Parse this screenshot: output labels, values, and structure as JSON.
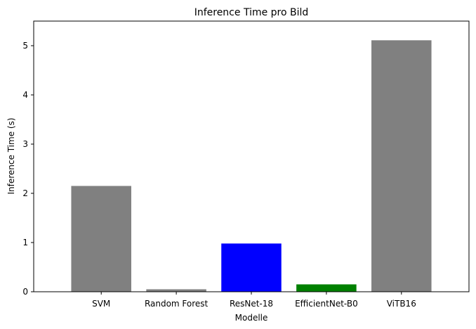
{
  "chart_data": {
    "type": "bar",
    "title": "Inference Time pro Bild",
    "xlabel": "Modelle",
    "ylabel": "Inference Time (s)",
    "categories": [
      "SVM",
      "Random Forest",
      "ResNet-18",
      "EfficientNet-B0",
      "ViTB16"
    ],
    "values": [
      2.15,
      0.05,
      0.98,
      0.15,
      5.11
    ],
    "colors": [
      "#808080",
      "#808080",
      "#0000ff",
      "#008000",
      "#808080"
    ],
    "ylim": [
      0,
      5.5
    ],
    "yticks": [
      "0",
      "1",
      "2",
      "3",
      "4",
      "5"
    ],
    "grid": false,
    "legend": "none"
  }
}
